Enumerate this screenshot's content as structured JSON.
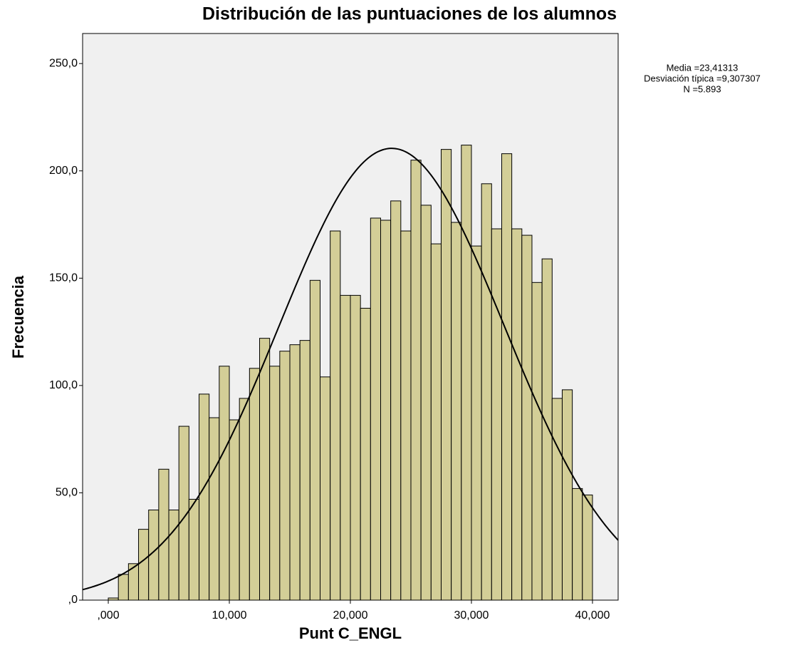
{
  "chart_data": {
    "type": "histogram",
    "title": "Distribución de las puntuaciones de los alumnos",
    "x_label": "Punt C_ENGL",
    "y_label": "Frecuencia",
    "bins": [
      0,
      0.8333,
      1.6667,
      2.5,
      3.3333,
      4.1667,
      5,
      5.8333,
      6.6667,
      7.5,
      8.3333,
      9.1667,
      10,
      10.8333,
      11.6667,
      12.5,
      13.3333,
      14.1667,
      15,
      15.8333,
      16.6667,
      17.5,
      18.3333,
      19.1667,
      20,
      20.8333,
      21.6667,
      22.5,
      23.3333,
      24.1667,
      25,
      25.8333,
      26.6667,
      27.5,
      28.3333,
      29.1667,
      30,
      30.8333,
      31.6667,
      32.5,
      33.3333,
      34.1667,
      35,
      35.8333,
      36.6667,
      37.5,
      38.3333,
      39.1667,
      40
    ],
    "values": [
      1,
      12,
      17,
      33,
      42,
      61,
      42,
      81,
      47,
      96,
      85,
      109,
      84,
      94,
      108,
      122,
      109,
      116,
      119,
      121,
      149,
      104,
      172,
      142,
      142,
      136,
      178,
      177,
      186,
      172,
      205,
      184,
      166,
      210,
      176,
      212,
      165,
      194,
      173,
      208,
      173,
      170,
      148,
      159,
      94,
      98,
      52,
      49
    ],
    "color": "#d3ce97",
    "background": "#f0f0f0",
    "xlim": [
      -2.12,
      42.12
    ],
    "ylim": [
      0,
      264
    ],
    "xticks": [
      {
        "value": 0,
        "label": ",000"
      },
      {
        "value": 10,
        "label": "10,000"
      },
      {
        "value": 20,
        "label": "20,000"
      },
      {
        "value": 30,
        "label": "30,000"
      },
      {
        "value": 40,
        "label": "40,000"
      }
    ],
    "yticks": [
      {
        "value": 0,
        "label": ",0"
      },
      {
        "value": 50,
        "label": "50,0"
      },
      {
        "value": 100,
        "label": "100,0"
      },
      {
        "value": 150,
        "label": "150,0"
      },
      {
        "value": 200,
        "label": "200,0"
      },
      {
        "value": 250,
        "label": "250,0"
      }
    ],
    "stats": {
      "mean": {
        "value": 23.41313,
        "label": "Media =23,41313"
      },
      "sd": {
        "value": 9.307307,
        "label": "Desviación típica =9,307307"
      },
      "n": {
        "value": 5893,
        "label": "N =5.893"
      }
    }
  }
}
